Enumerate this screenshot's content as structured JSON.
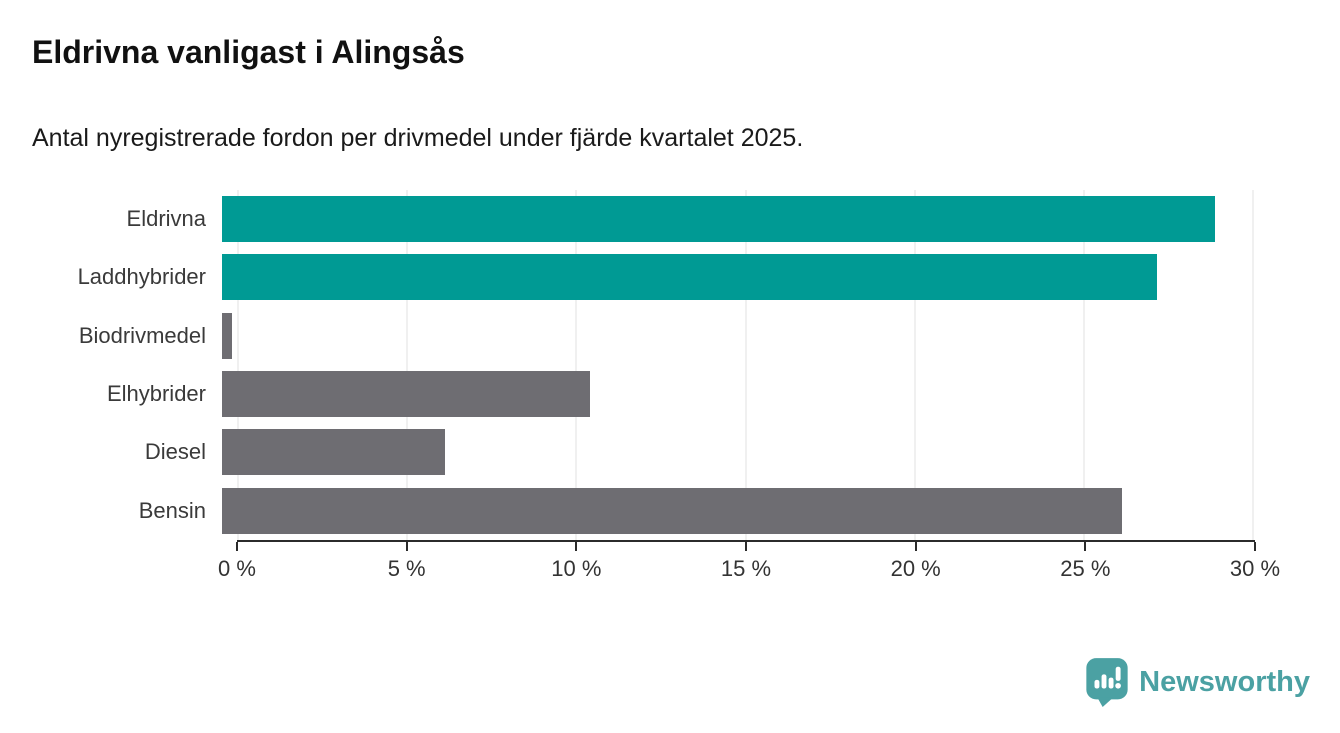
{
  "header": {
    "title": "Eldrivna vanligast i Alingsås",
    "subtitle": "Antal nyregistrerade fordon per drivmedel under fjärde kvartalet 2025."
  },
  "chart_data": {
    "type": "bar",
    "orientation": "horizontal",
    "title": "Eldrivna vanligast i Alingsås",
    "subtitle": "Antal nyregistrerade fordon per drivmedel under fjärde kvartalet 2025.",
    "categories": [
      "Eldrivna",
      "Laddhybrider",
      "Biodrivmedel",
      "Elhybrider",
      "Diesel",
      "Bensin"
    ],
    "values": [
      28.9,
      27.2,
      0.3,
      10.7,
      6.5,
      26.2
    ],
    "unit": "%",
    "xlabel": "",
    "ylabel": "",
    "xlim": [
      0,
      30
    ],
    "x_ticks": [
      0,
      5,
      10,
      15,
      20,
      25,
      30
    ],
    "x_tick_labels": [
      "0 %",
      "5 %",
      "10 %",
      "15 %",
      "20 %",
      "25 %",
      "30 %"
    ],
    "grid": true,
    "legend": "none",
    "bar_colors": [
      "#009a94",
      "#009a94",
      "#6e6d72",
      "#6e6d72",
      "#6e6d72",
      "#6e6d72"
    ]
  },
  "colors": {
    "highlight_teal": "#009a94",
    "base_gray": "#6e6d72",
    "gridline": "#e0e0e0",
    "axis": "#2b2b2b",
    "text": "#1a1a1a",
    "logo_teal": "#4ba1a3"
  },
  "branding": {
    "logo_text": "Newsworthy"
  }
}
